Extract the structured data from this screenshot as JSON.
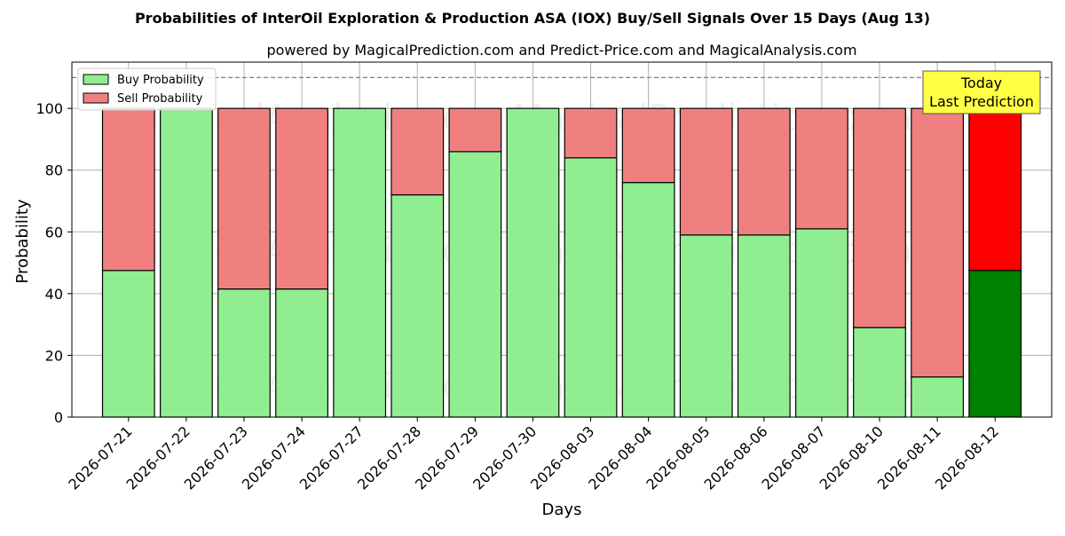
{
  "chart_data": {
    "type": "bar",
    "title": "Probabilities of InterOil Exploration & Production ASA (IOX) Buy/Sell Signals Over 15 Days (Aug 13)",
    "subtitle": "powered by MagicalPrediction.com and Predict-Price.com and MagicalAnalysis.com",
    "xlabel": "Days",
    "ylabel": "Probability",
    "ylim": [
      0,
      115
    ],
    "yticks": [
      0,
      20,
      40,
      60,
      80,
      100
    ],
    "reference_line": 110,
    "grid": true,
    "legend_position": "top-left",
    "categories": [
      "2026-07-21",
      "2026-07-22",
      "2026-07-23",
      "2026-07-24",
      "2026-07-27",
      "2026-07-28",
      "2026-07-29",
      "2026-07-30",
      "2026-08-03",
      "2026-08-04",
      "2026-08-05",
      "2026-08-06",
      "2026-08-07",
      "2026-08-10",
      "2026-08-11",
      "2026-08-12"
    ],
    "series": [
      {
        "name": "Buy Probability",
        "color": "#90ee90",
        "highlight_color": "#008000",
        "values": [
          47.5,
          100,
          41.5,
          41.5,
          100,
          72,
          86,
          100,
          84,
          76,
          59,
          59,
          61,
          29,
          13,
          47.5
        ]
      },
      {
        "name": "Sell Probability",
        "color": "#f08080",
        "highlight_color": "#ff0000",
        "values": [
          52.5,
          0,
          58.5,
          58.5,
          0,
          28,
          14,
          0,
          16,
          24,
          41,
          41,
          39,
          71,
          87,
          52.5
        ]
      }
    ],
    "highlight_index": 15,
    "annotation": {
      "text_line1": "Today",
      "text_line2": "Last Prediction",
      "background": "#ffff44"
    },
    "watermarks": [
      "MagicalAnalysis.com",
      "MagicalPrediction.com"
    ]
  }
}
